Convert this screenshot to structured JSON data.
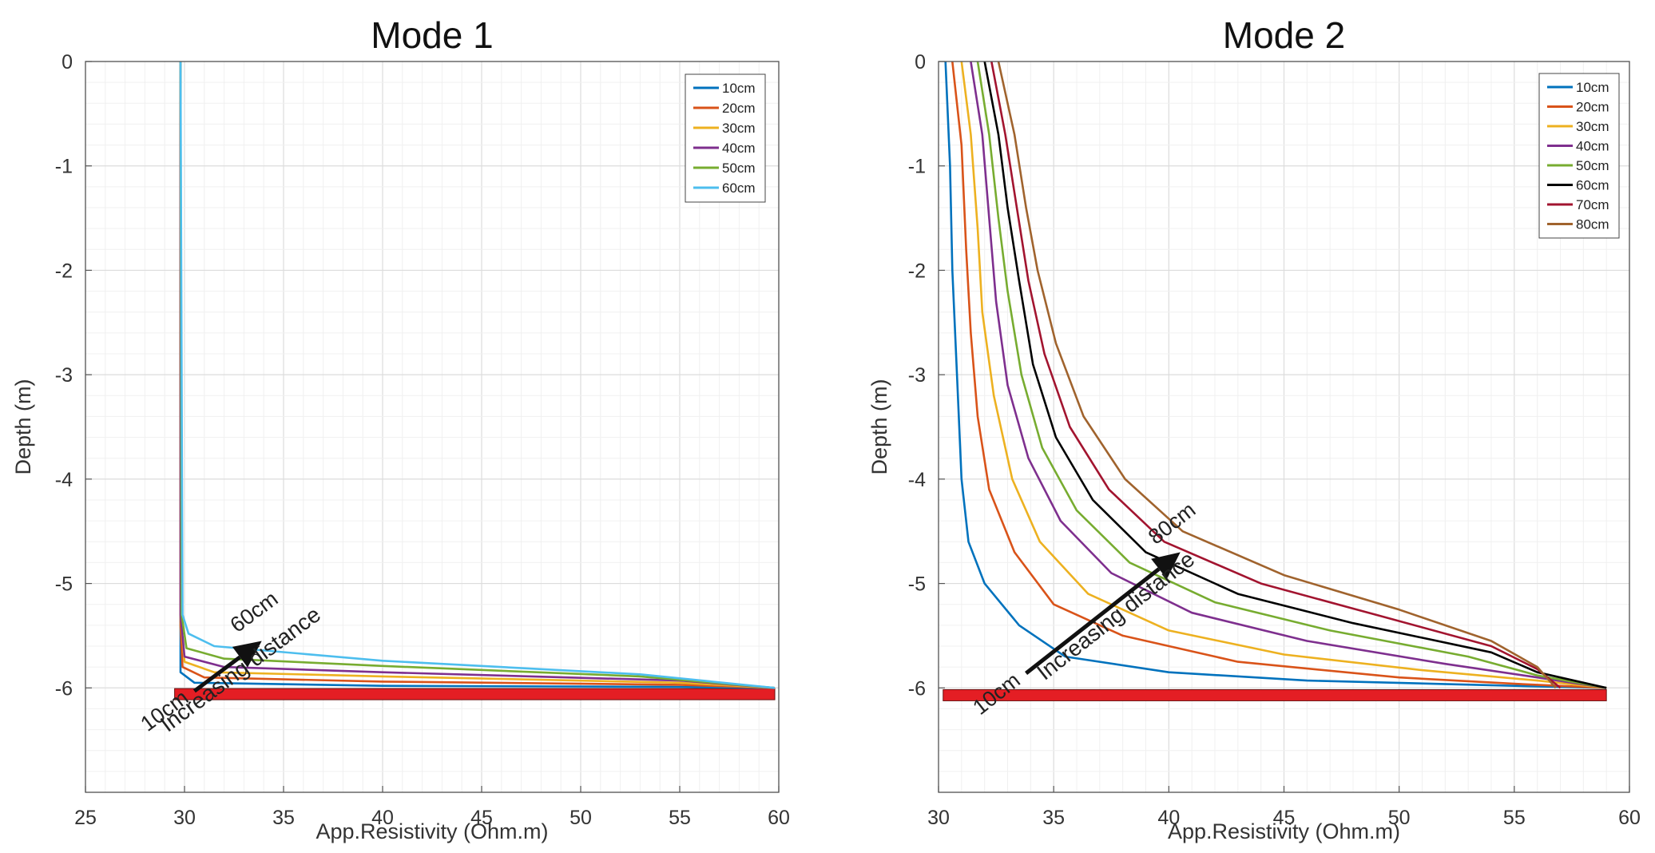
{
  "chart_data": [
    {
      "type": "line",
      "title": "Mode 1",
      "xlabel": "App.Resistivity (Ohm.m)",
      "ylabel": "Depth (m)",
      "xlim": [
        25,
        60
      ],
      "ylim": [
        -7,
        0
      ],
      "xticks": [
        25,
        30,
        35,
        40,
        45,
        50,
        55,
        60
      ],
      "xtick_labels": [
        "25",
        "30",
        "35",
        "40",
        "45",
        "50",
        "55",
        "60"
      ],
      "yticks": [
        0,
        -1,
        -2,
        -3,
        -4,
        -5,
        -6
      ],
      "ytick_labels": [
        "0",
        "-1",
        "-2",
        "-3",
        "-4",
        "-5",
        "-6"
      ],
      "grid": true,
      "legend_position": "top-right",
      "series": [
        {
          "name": "10cm",
          "color": "#0072BD",
          "points": [
            [
              29.8,
              0
            ],
            [
              29.8,
              -5.5
            ],
            [
              29.8,
              -5.85
            ],
            [
              30.5,
              -5.95
            ],
            [
              40,
              -5.98
            ],
            [
              55,
              -5.99
            ],
            [
              59.8,
              -6.0
            ]
          ]
        },
        {
          "name": "20cm",
          "color": "#D95319",
          "points": [
            [
              29.8,
              0
            ],
            [
              29.8,
              -5.4
            ],
            [
              29.9,
              -5.8
            ],
            [
              31,
              -5.9
            ],
            [
              40,
              -5.94
            ],
            [
              55,
              -5.97
            ],
            [
              59.8,
              -6.0
            ]
          ]
        },
        {
          "name": "30cm",
          "color": "#EDB120",
          "points": [
            [
              29.8,
              0
            ],
            [
              29.8,
              -5.3
            ],
            [
              30,
              -5.75
            ],
            [
              31.5,
              -5.85
            ],
            [
              40,
              -5.89
            ],
            [
              55,
              -5.95
            ],
            [
              59.8,
              -6.0
            ]
          ]
        },
        {
          "name": "40cm",
          "color": "#7E2F8E",
          "points": [
            [
              29.8,
              0
            ],
            [
              29.8,
              -5.3
            ],
            [
              30,
              -5.7
            ],
            [
              32,
              -5.8
            ],
            [
              40,
              -5.85
            ],
            [
              55,
              -5.93
            ],
            [
              59.8,
              -6.0
            ]
          ]
        },
        {
          "name": "50cm",
          "color": "#77AC30",
          "points": [
            [
              29.8,
              0
            ],
            [
              29.85,
              -5.3
            ],
            [
              30.1,
              -5.62
            ],
            [
              32,
              -5.72
            ],
            [
              40,
              -5.79
            ],
            [
              53,
              -5.89
            ],
            [
              59.8,
              -6.0
            ]
          ]
        },
        {
          "name": "60cm",
          "color": "#4DBEEE",
          "points": [
            [
              29.8,
              0
            ],
            [
              29.9,
              -5.3
            ],
            [
              30.2,
              -5.48
            ],
            [
              31.5,
              -5.6
            ],
            [
              40,
              -5.74
            ],
            [
              53,
              -5.87
            ],
            [
              59.8,
              -6.0
            ]
          ]
        }
      ],
      "annotations": {
        "arrow_start_label": "10cm",
        "arrow_end_label": "60cm",
        "arrow_label": "Increasing distance",
        "arrow_from": [
          30.5,
          -6.03
        ],
        "arrow_to": [
          33.9,
          -5.55
        ],
        "red_bar": {
          "x": [
            29.5,
            59.8
          ],
          "y": -6.06,
          "color": "#E41E24"
        }
      }
    },
    {
      "type": "line",
      "title": "Mode 2",
      "xlabel": "App.Resistivity (Ohm.m)",
      "ylabel": "Depth (m)",
      "xlim": [
        30,
        60
      ],
      "ylim": [
        -7,
        0
      ],
      "xticks": [
        30,
        35,
        40,
        45,
        50,
        55,
        60
      ],
      "xtick_labels": [
        "30",
        "35",
        "40",
        "45",
        "50",
        "55",
        "60"
      ],
      "yticks": [
        0,
        -1,
        -2,
        -3,
        -4,
        -5,
        -6
      ],
      "ytick_labels": [
        "0",
        "-1",
        "-2",
        "-3",
        "-4",
        "-5",
        "-6"
      ],
      "grid": true,
      "legend_position": "top-right",
      "series": [
        {
          "name": "10cm",
          "color": "#0072BD",
          "points": [
            [
              30.3,
              0
            ],
            [
              30.5,
              -1
            ],
            [
              30.6,
              -2
            ],
            [
              30.8,
              -3
            ],
            [
              31,
              -4
            ],
            [
              31.3,
              -4.6
            ],
            [
              32,
              -5
            ],
            [
              33.5,
              -5.4
            ],
            [
              35.5,
              -5.7
            ],
            [
              40,
              -5.85
            ],
            [
              46,
              -5.93
            ],
            [
              55,
              -5.98
            ],
            [
              59,
              -6.0
            ]
          ]
        },
        {
          "name": "20cm",
          "color": "#D95319",
          "points": [
            [
              30.6,
              0
            ],
            [
              31,
              -0.8
            ],
            [
              31.2,
              -1.8
            ],
            [
              31.4,
              -2.6
            ],
            [
              31.7,
              -3.4
            ],
            [
              32.2,
              -4.1
            ],
            [
              33.3,
              -4.7
            ],
            [
              35,
              -5.2
            ],
            [
              38,
              -5.5
            ],
            [
              43,
              -5.75
            ],
            [
              50,
              -5.9
            ],
            [
              55,
              -5.96
            ],
            [
              59,
              -6.0
            ]
          ]
        },
        {
          "name": "30cm",
          "color": "#EDB120",
          "points": [
            [
              31,
              0
            ],
            [
              31.4,
              -0.7
            ],
            [
              31.7,
              -1.6
            ],
            [
              31.9,
              -2.4
            ],
            [
              32.4,
              -3.2
            ],
            [
              33.2,
              -4
            ],
            [
              34.4,
              -4.6
            ],
            [
              36.5,
              -5.1
            ],
            [
              40,
              -5.45
            ],
            [
              45,
              -5.68
            ],
            [
              51,
              -5.83
            ],
            [
              56,
              -5.93
            ],
            [
              59,
              -6.0
            ]
          ]
        },
        {
          "name": "40cm",
          "color": "#7E2F8E",
          "points": [
            [
              31.4,
              0
            ],
            [
              31.9,
              -0.7
            ],
            [
              32.2,
              -1.5
            ],
            [
              32.5,
              -2.3
            ],
            [
              33,
              -3.1
            ],
            [
              33.9,
              -3.8
            ],
            [
              35.3,
              -4.4
            ],
            [
              37.5,
              -4.9
            ],
            [
              41,
              -5.28
            ],
            [
              46,
              -5.55
            ],
            [
              52,
              -5.77
            ],
            [
              56,
              -5.9
            ],
            [
              59,
              -6.0
            ]
          ]
        },
        {
          "name": "50cm",
          "color": "#77AC30",
          "points": [
            [
              31.7,
              0
            ],
            [
              32.2,
              -0.7
            ],
            [
              32.6,
              -1.5
            ],
            [
              33,
              -2.2
            ],
            [
              33.6,
              -3
            ],
            [
              34.5,
              -3.7
            ],
            [
              36,
              -4.3
            ],
            [
              38.3,
              -4.8
            ],
            [
              42,
              -5.18
            ],
            [
              47,
              -5.45
            ],
            [
              53,
              -5.7
            ],
            [
              56,
              -5.88
            ],
            [
              59,
              -6.0
            ]
          ]
        },
        {
          "name": "60cm",
          "color": "#000000",
          "points": [
            [
              32,
              0
            ],
            [
              32.6,
              -0.7
            ],
            [
              33,
              -1.4
            ],
            [
              33.5,
              -2.1
            ],
            [
              34.1,
              -2.9
            ],
            [
              35.1,
              -3.6
            ],
            [
              36.7,
              -4.2
            ],
            [
              39,
              -4.7
            ],
            [
              43,
              -5.1
            ],
            [
              48,
              -5.38
            ],
            [
              54,
              -5.66
            ],
            [
              56,
              -5.85
            ],
            [
              59,
              -6.0
            ]
          ]
        },
        {
          "name": "70cm",
          "color": "#A2142F",
          "points": [
            [
              32.3,
              0
            ],
            [
              32.9,
              -0.7
            ],
            [
              33.4,
              -1.4
            ],
            [
              33.9,
              -2.1
            ],
            [
              34.6,
              -2.8
            ],
            [
              35.7,
              -3.5
            ],
            [
              37.4,
              -4.1
            ],
            [
              39.8,
              -4.6
            ],
            [
              44,
              -5
            ],
            [
              49,
              -5.3
            ],
            [
              54,
              -5.6
            ],
            [
              56,
              -5.82
            ],
            [
              57,
              -6.0
            ]
          ]
        },
        {
          "name": "80cm",
          "color": "#A0632D",
          "points": [
            [
              32.6,
              0
            ],
            [
              33.3,
              -0.7
            ],
            [
              33.8,
              -1.4
            ],
            [
              34.3,
              -2
            ],
            [
              35.1,
              -2.7
            ],
            [
              36.3,
              -3.4
            ],
            [
              38.1,
              -4
            ],
            [
              40.6,
              -4.5
            ],
            [
              45,
              -4.92
            ],
            [
              50,
              -5.25
            ],
            [
              54,
              -5.55
            ],
            [
              56,
              -5.8
            ],
            [
              56.8,
              -6.0
            ]
          ]
        }
      ],
      "annotations": {
        "arrow_start_label": "10cm",
        "arrow_end_label": "80cm",
        "arrow_label": "Increasing distance",
        "arrow_from": [
          33.8,
          -5.86
        ],
        "arrow_to": [
          40.5,
          -4.7
        ],
        "red_bar": {
          "x": [
            30.2,
            59
          ],
          "y": -6.07,
          "color": "#E41E24"
        }
      }
    }
  ]
}
